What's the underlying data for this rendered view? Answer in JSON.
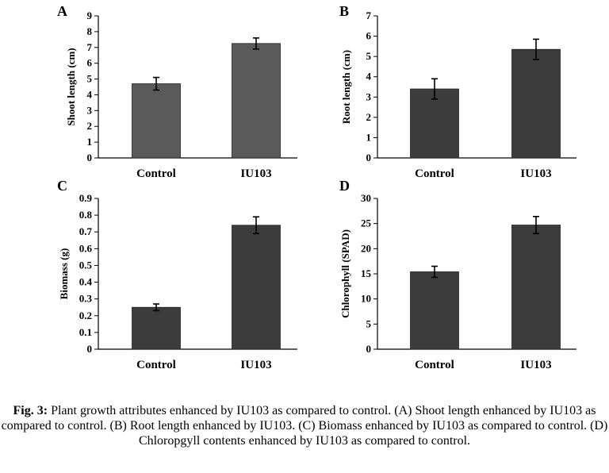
{
  "chart_data": [
    {
      "panel": "A",
      "type": "bar",
      "categories": [
        "Control",
        "IU103"
      ],
      "values": [
        4.7,
        7.25
      ],
      "errors": [
        0.4,
        0.35
      ],
      "ylabel": "Shoot length (cm)",
      "ylim": [
        0,
        9
      ],
      "yticks": [
        "0",
        "1",
        "2",
        "3",
        "4",
        "5",
        "6",
        "7",
        "8",
        "9"
      ],
      "bar_color": "#5a5a5a"
    },
    {
      "panel": "B",
      "type": "bar",
      "categories": [
        "Control",
        "IU103"
      ],
      "values": [
        3.4,
        5.35
      ],
      "errors": [
        0.5,
        0.5
      ],
      "ylabel": "Root length (cm)",
      "ylim": [
        0,
        7
      ],
      "yticks": [
        "0",
        "1",
        "2",
        "3",
        "4",
        "5",
        "6",
        "7"
      ],
      "bar_color": "#3c3c3c"
    },
    {
      "panel": "C",
      "type": "bar",
      "categories": [
        "Control",
        "IU103"
      ],
      "values": [
        0.25,
        0.74
      ],
      "errors": [
        0.02,
        0.05
      ],
      "ylabel": "Biomass (g)",
      "ylim": [
        0,
        0.9
      ],
      "yticks": [
        "0",
        "0.1",
        "0.2",
        "0.3",
        "0.4",
        "0.5",
        "0.6",
        "0.7",
        "0.8",
        "0.9"
      ],
      "bar_color": "#3c3c3c"
    },
    {
      "panel": "D",
      "type": "bar",
      "categories": [
        "Control",
        "IU103"
      ],
      "values": [
        15.4,
        24.7
      ],
      "errors": [
        1.1,
        1.7
      ],
      "ylabel": "Chlorophyll (SPAD)",
      "ylim": [
        0,
        30
      ],
      "yticks": [
        "0",
        "5",
        "10",
        "15",
        "20",
        "25",
        "30"
      ],
      "bar_color": "#3c3c3c"
    }
  ],
  "caption": {
    "label": "Fig. 3:",
    "text": " Plant growth attributes enhanced by IU103 as compared to control. (A) Shoot length enhanced by IU103 as compared to control. (B) Root length enhanced by IU103. (C) Biomass enhanced by IU103 as compared to control. (D) Chloropgyll contents enhanced by IU103 as compared to control."
  }
}
